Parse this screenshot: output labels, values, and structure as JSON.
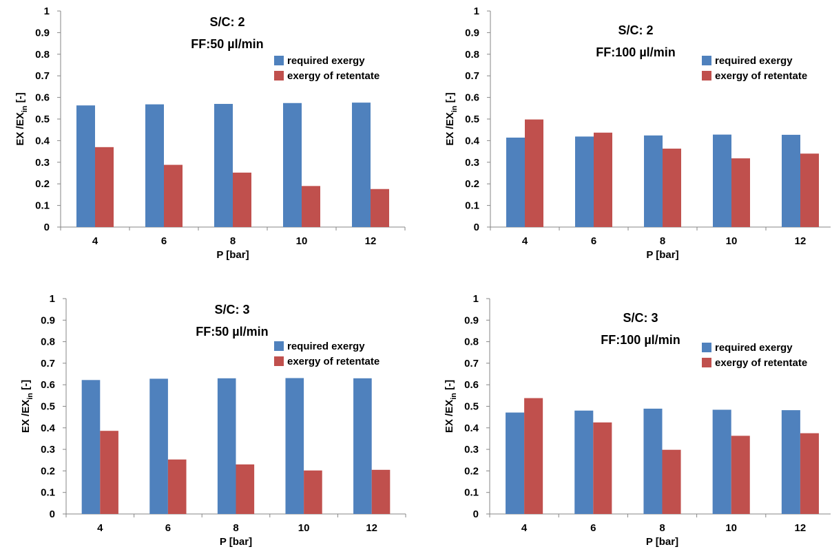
{
  "chart_data": [
    {
      "type": "bar",
      "title_line1": "S/C: 2",
      "title_line2": "FF:50 µl/min",
      "xlabel": "P [bar]",
      "ylabel_main": "EX /EX",
      "ylabel_sub": "in",
      "ylabel_tail": " [-]",
      "categories": [
        "4",
        "6",
        "8",
        "10",
        "12"
      ],
      "ylim": [
        0,
        1
      ],
      "yticks": [
        "0",
        "0.1",
        "0.2",
        "0.3",
        "0.4",
        "0.5",
        "0.6",
        "0.7",
        "0.8",
        "0.9",
        "1"
      ],
      "legend_position": "top-right",
      "series": [
        {
          "name": "required exergy",
          "color": "#4F81BD",
          "values": [
            0.563,
            0.568,
            0.57,
            0.574,
            0.576
          ]
        },
        {
          "name": "exergy of retentate",
          "color": "#C0504D",
          "values": [
            0.37,
            0.288,
            0.252,
            0.19,
            0.176
          ]
        }
      ]
    },
    {
      "type": "bar",
      "title_line1": "S/C: 2",
      "title_line2": "FF:100 µl/min",
      "xlabel": "P [bar]",
      "ylabel_main": "EX /EX",
      "ylabel_sub": "in",
      "ylabel_tail": " [-]",
      "categories": [
        "4",
        "6",
        "8",
        "10",
        "12"
      ],
      "ylim": [
        0,
        1
      ],
      "yticks": [
        "0",
        "0.1",
        "0.2",
        "0.3",
        "0.4",
        "0.5",
        "0.6",
        "0.7",
        "0.8",
        "0.9",
        "1"
      ],
      "legend_position": "top-right",
      "series": [
        {
          "name": "required exergy",
          "color": "#4F81BD",
          "values": [
            0.414,
            0.419,
            0.424,
            0.428,
            0.427
          ]
        },
        {
          "name": "exergy of retentate",
          "color": "#C0504D",
          "values": [
            0.498,
            0.437,
            0.363,
            0.318,
            0.34
          ]
        }
      ]
    },
    {
      "type": "bar",
      "title_line1": "S/C: 3",
      "title_line2": "FF:50 µl/min",
      "xlabel": "P [bar]",
      "ylabel_main": "EX /EX",
      "ylabel_sub": "in",
      "ylabel_tail": " [-]",
      "categories": [
        "4",
        "6",
        "8",
        "10",
        "12"
      ],
      "ylim": [
        0,
        1
      ],
      "yticks": [
        "0",
        "0.1",
        "0.2",
        "0.3",
        "0.4",
        "0.5",
        "0.6",
        "0.7",
        "0.8",
        "0.9",
        "1"
      ],
      "legend_position": "top-right",
      "series": [
        {
          "name": "required exergy",
          "color": "#4F81BD",
          "values": [
            0.622,
            0.628,
            0.63,
            0.631,
            0.63
          ]
        },
        {
          "name": "exergy of retentate",
          "color": "#C0504D",
          "values": [
            0.386,
            0.253,
            0.23,
            0.202,
            0.205
          ]
        }
      ]
    },
    {
      "type": "bar",
      "title_line1": "S/C: 3",
      "title_line2": "FF:100 µl/min",
      "xlabel": "P [bar]",
      "ylabel_main": "EX /EX",
      "ylabel_sub": "in",
      "ylabel_tail": " [-]",
      "categories": [
        "4",
        "6",
        "8",
        "10",
        "12"
      ],
      "ylim": [
        0,
        1
      ],
      "yticks": [
        "0",
        "0.1",
        "0.2",
        "0.3",
        "0.4",
        "0.5",
        "0.6",
        "0.7",
        "0.8",
        "0.9",
        "1"
      ],
      "legend_position": "top-right",
      "series": [
        {
          "name": "required exergy",
          "color": "#4F81BD",
          "values": [
            0.471,
            0.48,
            0.489,
            0.484,
            0.482
          ]
        },
        {
          "name": "exergy of retentate",
          "color": "#C0504D",
          "values": [
            0.538,
            0.425,
            0.298,
            0.363,
            0.375
          ]
        }
      ]
    }
  ]
}
